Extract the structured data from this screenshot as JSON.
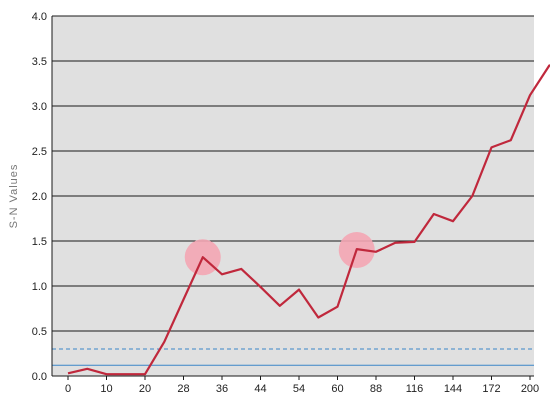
{
  "chart_data": {
    "type": "line",
    "ylabel": "S-N Values",
    "xlabel": "",
    "title": "",
    "ylim": [
      0,
      4.0
    ],
    "yticks": [
      0.0,
      0.5,
      1.0,
      1.5,
      2.0,
      2.5,
      3.0,
      3.5,
      4.0
    ],
    "ytick_labels": [
      "0.0",
      "0.5",
      "1.0",
      "1.5",
      "2.0",
      "2.5",
      "3.0",
      "3.5",
      "4.0"
    ],
    "xtick_labels": [
      "0",
      "10",
      "20",
      "28",
      "36",
      "44",
      "54",
      "60",
      "88",
      "116",
      "144",
      "172",
      "200"
    ],
    "grid": "horizontal",
    "series": [
      {
        "color": "#c0283c",
        "x": [
          0,
          0.5,
          1,
          1.5,
          2,
          2.5,
          3,
          3.5,
          4,
          4.5,
          5,
          5.5,
          6,
          6.5,
          7,
          7.5,
          8,
          8.5,
          9,
          9.5,
          10,
          10.5,
          11,
          11.5,
          12,
          12.5,
          13
        ],
        "values": [
          0.03,
          0.08,
          0.02,
          0.02,
          0.02,
          0.38,
          0.85,
          1.32,
          1.13,
          1.19,
          0.99,
          0.78,
          0.96,
          0.65,
          0.77,
          1.41,
          1.38,
          1.48,
          1.49,
          1.8,
          1.72,
          2.0,
          2.54,
          2.62,
          3.12,
          3.45,
          3.45
        ]
      }
    ],
    "reference_lines": [
      {
        "value": 0.3,
        "style": "dashed",
        "color": "#3a86c8"
      },
      {
        "value": 0.12,
        "style": "solid",
        "color": "#3a86c8"
      }
    ],
    "highlights": [
      {
        "x": 3.5,
        "y": 1.32,
        "color": "#f4a6b4"
      },
      {
        "x": 7.5,
        "y": 1.4,
        "color": "#f4a6b4"
      }
    ],
    "colors": {
      "plot_background": "#e0e0e0",
      "gridline": "#1a1a1a",
      "axis": "#1a1a1a",
      "line": "#c0283c",
      "reference": "#3a86c8",
      "highlight": "#f4a6b4"
    }
  }
}
